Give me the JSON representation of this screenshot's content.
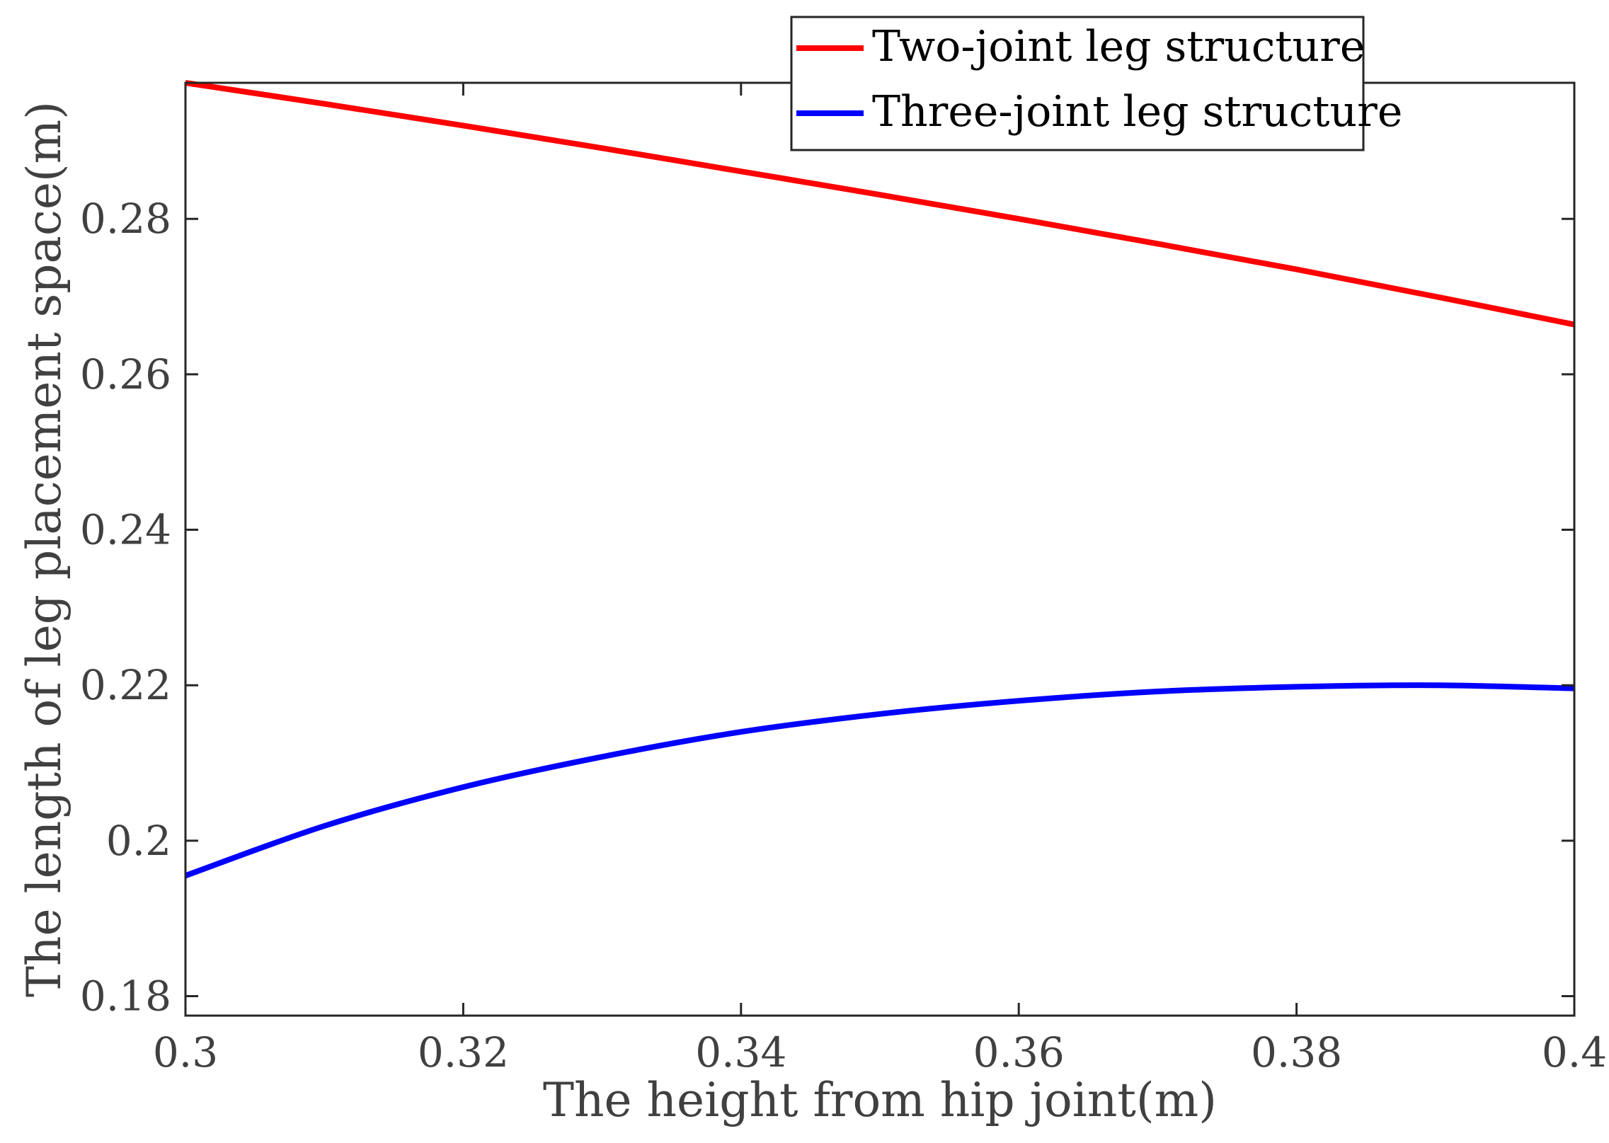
{
  "chart_data": {
    "type": "line",
    "title": "",
    "xlabel": "The height from hip joint(m)",
    "ylabel": "The length of leg placement space(m)",
    "xlim": [
      0.3,
      0.4
    ],
    "ylim": [
      0.1775,
      0.2975
    ],
    "xticks": [
      0.3,
      0.32,
      0.34,
      0.36,
      0.38,
      0.4
    ],
    "xtick_labels": [
      "0.3",
      "0.32",
      "0.34",
      "0.36",
      "0.38",
      "0.4"
    ],
    "yticks": [
      0.18,
      0.2,
      0.22,
      0.24,
      0.26,
      0.28
    ],
    "ytick_labels": [
      "0.18",
      "0.2",
      "0.22",
      "0.24",
      "0.26",
      "0.28"
    ],
    "grid": false,
    "legend_position": "top-right",
    "x": [
      0.3,
      0.31,
      0.32,
      0.33,
      0.34,
      0.35,
      0.36,
      0.37,
      0.38,
      0.39,
      0.4
    ],
    "series": [
      {
        "name": "Two-joint leg structure",
        "color": "#ff0000",
        "values": [
          0.2975,
          0.2948,
          0.292,
          0.2891,
          0.2861,
          0.2831,
          0.28,
          0.2768,
          0.2735,
          0.27,
          0.2664
        ]
      },
      {
        "name": "Three-joint leg structure",
        "color": "#0000ff",
        "values": [
          0.1955,
          0.2019,
          0.2069,
          0.2108,
          0.214,
          0.2163,
          0.218,
          0.2192,
          0.2198,
          0.22,
          0.2196
        ]
      }
    ]
  }
}
